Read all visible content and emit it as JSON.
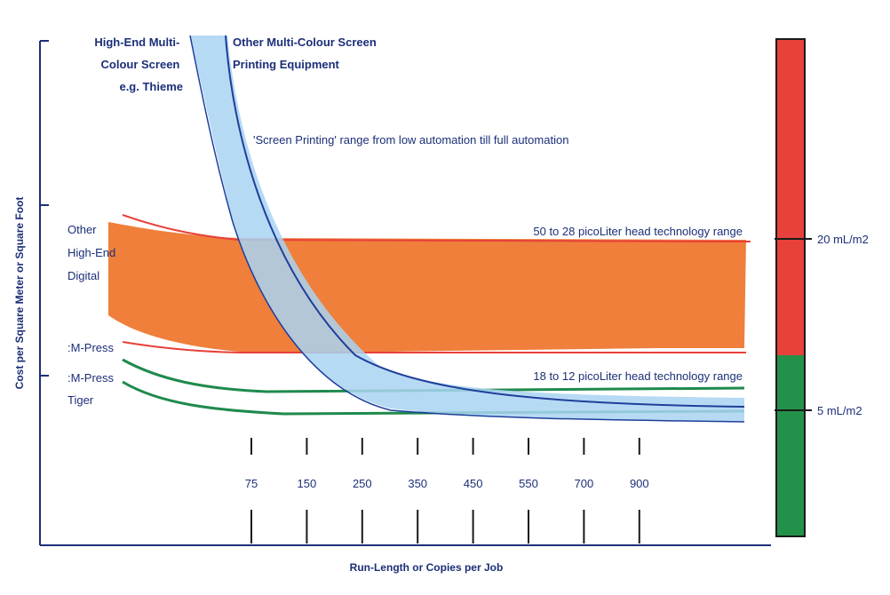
{
  "chart_data": {
    "type": "line",
    "title": "",
    "xlabel": "Run-Length or Copies per Job",
    "ylabel": "Cost per Square Meter or Square Foot",
    "x_ticks": [
      "75",
      "150",
      "250",
      "350",
      "450",
      "550",
      "700",
      "900"
    ],
    "series": [
      {
        "name": "Other High-End Digital",
        "label_lines": [
          "Other",
          "High-End",
          "Digital"
        ],
        "color": "#ef7f3a",
        "kind": "band"
      },
      {
        "name": ":M-Press",
        "color": "#1e8a4c",
        "kind": "curve"
      },
      {
        "name": ":M-Press Tiger",
        "label_lines": [
          ":M-Press",
          "Tiger"
        ],
        "color": "#1e8a4c",
        "kind": "curve"
      },
      {
        "name": "High-End Multi-Colour Screen e.g. Thieme",
        "label_lines": [
          "High-End Multi-",
          "Colour Screen",
          "e.g. Thieme"
        ],
        "color": "#a9d4f2",
        "kind": "band"
      },
      {
        "name": "Other Multi-Colour Screen Printing Equipment",
        "label_lines": [
          "Other Multi-Colour Screen",
          "Printing Equipment"
        ],
        "color": "#1f3f9a",
        "kind": "curve"
      }
    ],
    "annotations": [
      "'Screen Printing' range from low automation till full automation",
      "50 to 28 picoLiter head technology range",
      "18 to 12 picoLiter  head technology range"
    ],
    "side_scale": [
      {
        "label": "20 mL/m2",
        "color": "#e8403a"
      },
      {
        "label": "5 mL/m2",
        "color": "#22924a"
      }
    ],
    "grid": false,
    "legend": "none"
  }
}
